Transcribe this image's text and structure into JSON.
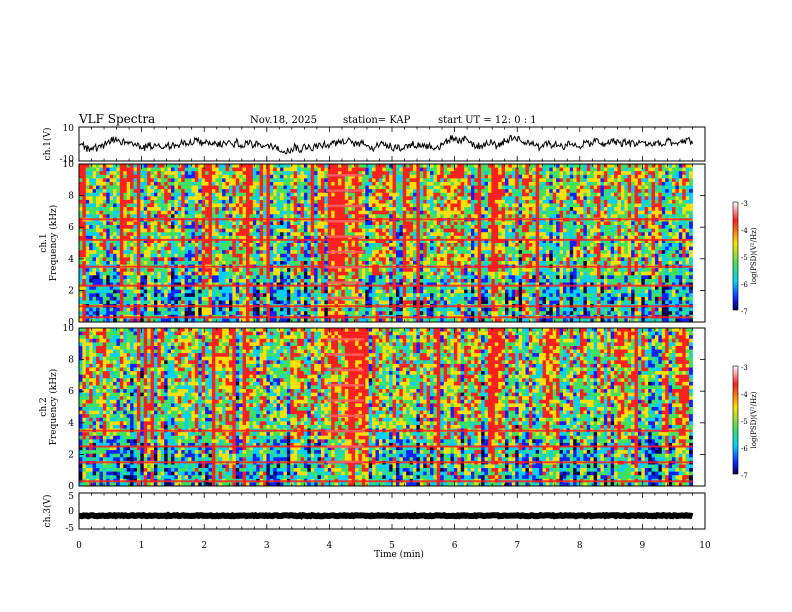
{
  "header": {
    "title": "VLF Spectra",
    "date": "Nov.18, 2025",
    "station": "station= KAP",
    "start": "start  UT =   12: 0  : 1"
  },
  "colorbar": {
    "label": "log(PSD)(V²/Hz)",
    "ticks": [
      "-3",
      "-4",
      "-5",
      "-6",
      "-7"
    ],
    "colors": [
      "#ffffff",
      "#ff2020",
      "#ffe000",
      "#40e060",
      "#00d0ff",
      "#1020ff",
      "#000050"
    ]
  },
  "chart_data": [
    {
      "type": "line",
      "name": "ch1-waveform",
      "ylabel": "ch.1(V)",
      "yticks": [
        "10",
        "-10"
      ],
      "ylim": [
        -10,
        10
      ],
      "xlim": [
        0,
        10
      ],
      "x_end": 9.8,
      "approx_mean": 0,
      "approx_amplitude": 5
    },
    {
      "type": "heatmap",
      "name": "ch1-spectrogram",
      "ylabel": "ch.1\nFrequency (kHz)",
      "yticks": [
        "0",
        "2",
        "4",
        "6",
        "8",
        "10"
      ],
      "ylim": [
        0,
        10
      ],
      "xlim": [
        0,
        10
      ],
      "x_end": 9.8,
      "value_range": [
        -7,
        -3
      ],
      "transmitter_lines_khz": [
        0.3,
        1.0,
        2.3,
        3.5,
        5.2,
        6.5
      ],
      "burst_interval_min": [
        3.95,
        4.55
      ]
    },
    {
      "type": "heatmap",
      "name": "ch2-spectrogram",
      "ylabel": "ch.2\nFrequency (kHz)",
      "yticks": [
        "0",
        "2",
        "4",
        "6",
        "8",
        "10"
      ],
      "ylim": [
        0,
        10
      ],
      "xlim": [
        0,
        10
      ],
      "x_end": 9.8,
      "value_range": [
        -7,
        -3
      ],
      "transmitter_lines_khz": [
        0.3,
        1.5,
        2.5,
        3.5
      ],
      "burst_interval_min": [
        3.95,
        4.55
      ]
    },
    {
      "type": "line",
      "name": "ch3-signal",
      "ylabel": "ch.3(V)",
      "yticks": [
        "5",
        "0",
        "-5"
      ],
      "ylim": [
        -5,
        5
      ],
      "xlim": [
        0,
        10
      ],
      "x_end": 9.8,
      "approx_mean": -1.3,
      "approx_amplitude": 0.3
    }
  ],
  "xaxis": {
    "label": "Time (min)",
    "ticks": [
      "0",
      "1",
      "2",
      "3",
      "4",
      "5",
      "6",
      "7",
      "8",
      "9",
      "10"
    ]
  }
}
